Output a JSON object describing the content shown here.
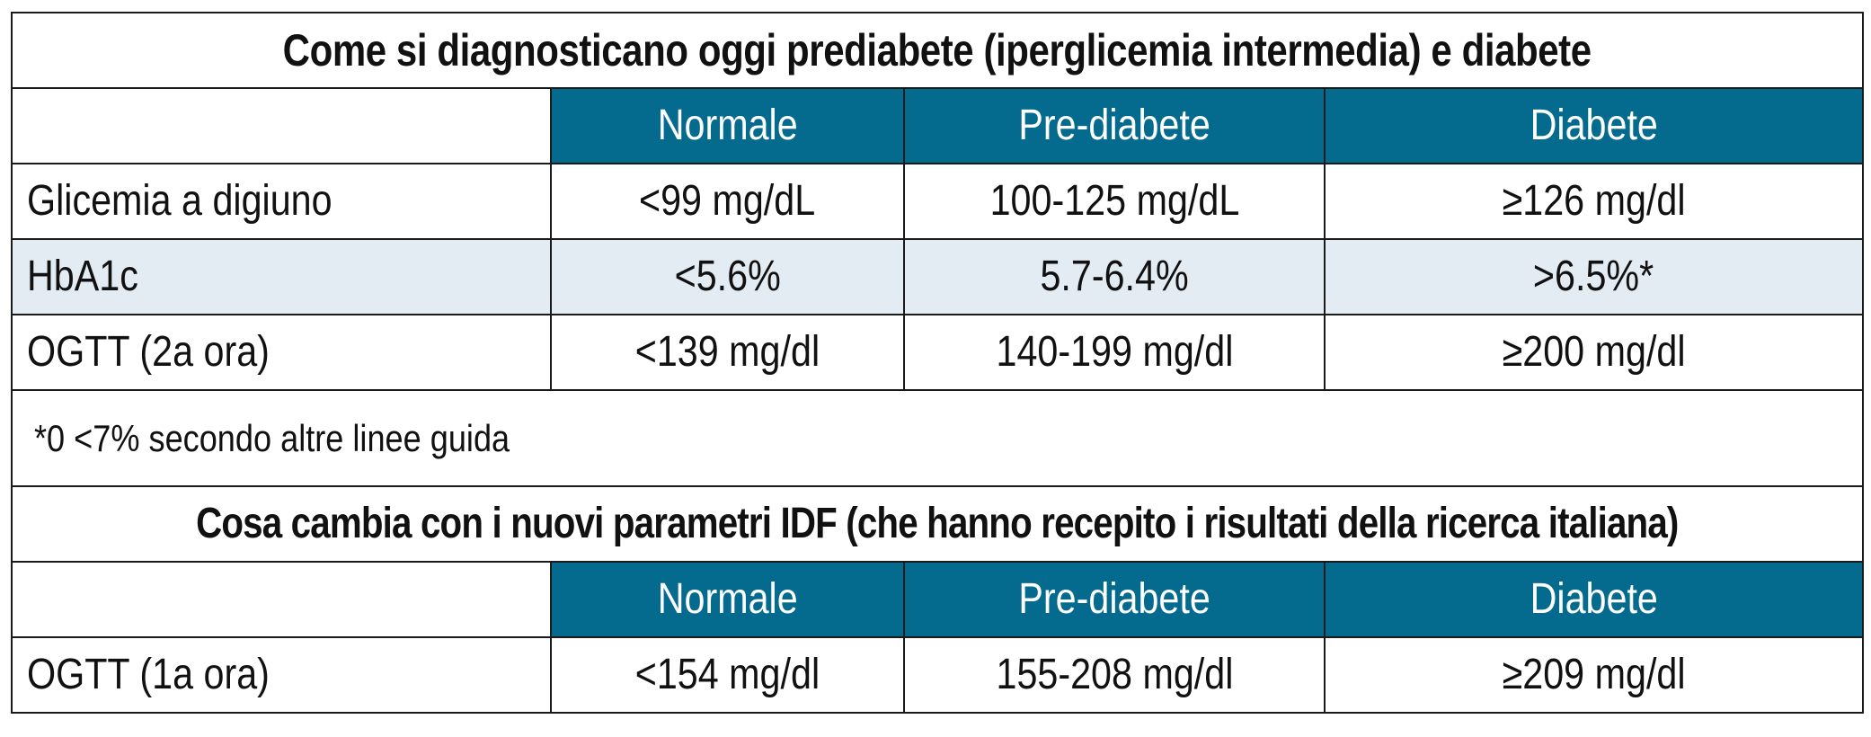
{
  "section1": {
    "title": "Come si diagnosticano oggi prediabete (iperglicemia intermedia) e diabete",
    "headers": [
      "Normale",
      "Pre-diabete",
      "Diabete"
    ],
    "rows": [
      {
        "label": "Glicemia a digiuno",
        "values": [
          "<99 mg/dL",
          "100-125 mg/dL",
          "≥126 mg/dl"
        ]
      },
      {
        "label": "HbA1c",
        "values": [
          "<5.6%",
          "5.7-6.4%",
          ">6.5%*"
        ]
      },
      {
        "label": "OGTT (2a ora)",
        "values": [
          "<139 mg/dl",
          "140-199 mg/dl",
          "≥200 mg/dl"
        ]
      }
    ],
    "note": "*0 <7% secondo altre linee guida"
  },
  "section2": {
    "title": "Cosa cambia con i nuovi parametri IDF (che hanno recepito i risultati della ricerca italiana)",
    "headers": [
      "Normale",
      "Pre-diabete",
      "Diabete"
    ],
    "rows": [
      {
        "label": "OGTT (1a ora)",
        "values": [
          "<154 mg/dl",
          "155-208 mg/dl",
          "≥209 mg/dl"
        ]
      }
    ]
  },
  "colors": {
    "header_bg": "#046b8e",
    "header_text": "#ffffff",
    "shaded_row": "#e3ebf3",
    "border": "#1a1a1a"
  }
}
